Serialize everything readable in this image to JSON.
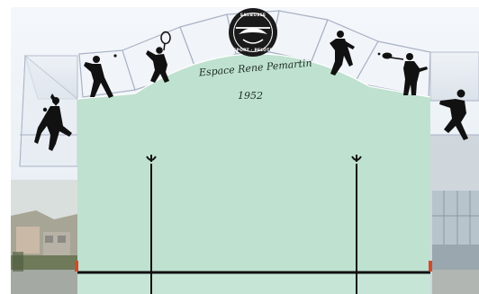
{
  "wall": {
    "venue_name": "Espace Rene Pemartin",
    "year": "1952"
  },
  "logo": {
    "top_text": "SAUBUSSE",
    "bottom_text": "SPORT · PELOTE"
  },
  "players": [
    {
      "name": "player-silhouette-left-bottom"
    },
    {
      "name": "player-silhouette-left-arch"
    },
    {
      "name": "player-silhouette-racket"
    },
    {
      "name": "player-silhouette-right-arch"
    },
    {
      "name": "player-silhouette-paddle"
    },
    {
      "name": "player-silhouette-far-right"
    }
  ],
  "colors": {
    "wall": "#bfe1d0",
    "lines": "#111111",
    "sky": "#e9eff6",
    "logo": "#1a1a1a"
  }
}
